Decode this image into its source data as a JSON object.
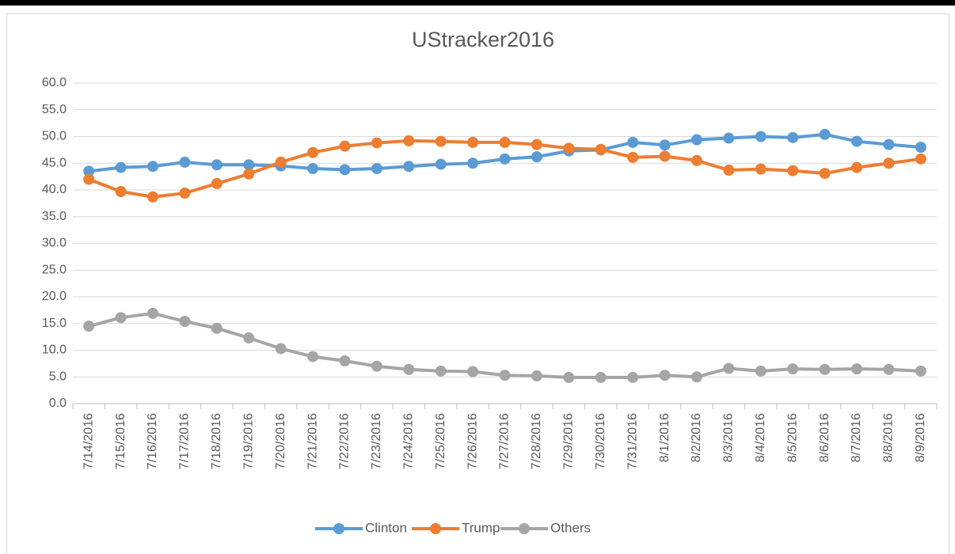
{
  "chart_data": {
    "type": "line",
    "title": "UStracker2016",
    "categories": [
      "7/14/2016",
      "7/15/2016",
      "7/16/2016",
      "7/17/2016",
      "7/18/2016",
      "7/19/2016",
      "7/20/2016",
      "7/21/2016",
      "7/22/2016",
      "7/23/2016",
      "7/24/2016",
      "7/25/2016",
      "7/26/2016",
      "7/27/2016",
      "7/28/2016",
      "7/29/2016",
      "7/30/2016",
      "7/31/2016",
      "8/1/2016",
      "8/2/2016",
      "8/3/2016",
      "8/4/2016",
      "8/5/2016",
      "8/6/2016",
      "8/7/2016",
      "8/8/2016",
      "8/9/2016"
    ],
    "series": [
      {
        "name": "Clinton",
        "color": "#5b9bd5",
        "values": [
          43.5,
          44.2,
          44.4,
          45.2,
          44.7,
          44.7,
          44.5,
          44.0,
          43.8,
          44.0,
          44.4,
          44.8,
          45.0,
          45.8,
          46.2,
          47.3,
          47.5,
          48.9,
          48.4,
          49.4,
          49.7,
          50.0,
          49.8,
          50.4,
          49.1,
          48.5,
          48.0
        ]
      },
      {
        "name": "Trump",
        "color": "#ed7d31",
        "values": [
          42.0,
          39.7,
          38.7,
          39.4,
          41.2,
          43.0,
          45.2,
          47.0,
          48.2,
          48.8,
          49.2,
          49.1,
          48.9,
          48.9,
          48.5,
          47.8,
          47.6,
          46.1,
          46.3,
          45.5,
          43.7,
          43.9,
          43.6,
          43.1,
          44.2,
          45.0,
          45.8
        ]
      },
      {
        "name": "Others",
        "color": "#a5a5a5",
        "values": [
          14.5,
          16.1,
          16.9,
          15.4,
          14.1,
          12.3,
          10.3,
          8.8,
          8.0,
          7.0,
          6.4,
          6.1,
          6.0,
          5.3,
          5.2,
          4.9,
          4.9,
          4.9,
          5.3,
          5.0,
          6.6,
          6.1,
          6.5,
          6.4,
          6.5,
          6.4,
          6.1
        ]
      }
    ],
    "ylim": [
      0,
      60
    ],
    "yticks": [
      {
        "value": 0,
        "label": "0.0"
      },
      {
        "value": 5,
        "label": "5.0"
      },
      {
        "value": 10,
        "label": "10.0"
      },
      {
        "value": 15,
        "label": "15.0"
      },
      {
        "value": 20,
        "label": "20.0"
      },
      {
        "value": 25,
        "label": "25.0"
      },
      {
        "value": 30,
        "label": "30.0"
      },
      {
        "value": 35,
        "label": "35.0"
      },
      {
        "value": 40,
        "label": "40.0"
      },
      {
        "value": 45,
        "label": "45.0"
      },
      {
        "value": 50,
        "label": "50.0"
      },
      {
        "value": 55,
        "label": "55.0"
      },
      {
        "value": 60,
        "label": "60.0"
      }
    ],
    "grid": true,
    "legend": "bottom"
  }
}
